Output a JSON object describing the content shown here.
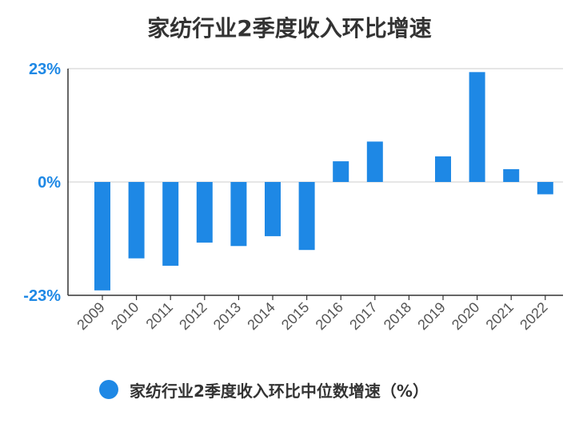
{
  "chart_data": {
    "type": "bar",
    "title": "家纺行业2季度收入环比增速",
    "categories": [
      "2009",
      "2010",
      "2011",
      "2012",
      "2013",
      "2014",
      "2015",
      "2016",
      "2017",
      "2018",
      "2019",
      "2020",
      "2021",
      "2022"
    ],
    "series": [
      {
        "name": "家纺行业2季度收入环比中位数增速（%）",
        "values": [
          -22,
          -15.5,
          -17,
          -12.3,
          -13,
          -11,
          -13.8,
          4.2,
          8.2,
          0,
          5.2,
          22.3,
          2.6,
          -2.5
        ],
        "color": "#1e88e5"
      }
    ],
    "y_ticks": [
      "23%",
      "0%",
      "-23%"
    ],
    "ylim": [
      -23,
      23
    ],
    "xlabel": "",
    "ylabel": "",
    "grid": true,
    "legend_position": "bottom",
    "tick_label_color": "#1e88e5"
  }
}
